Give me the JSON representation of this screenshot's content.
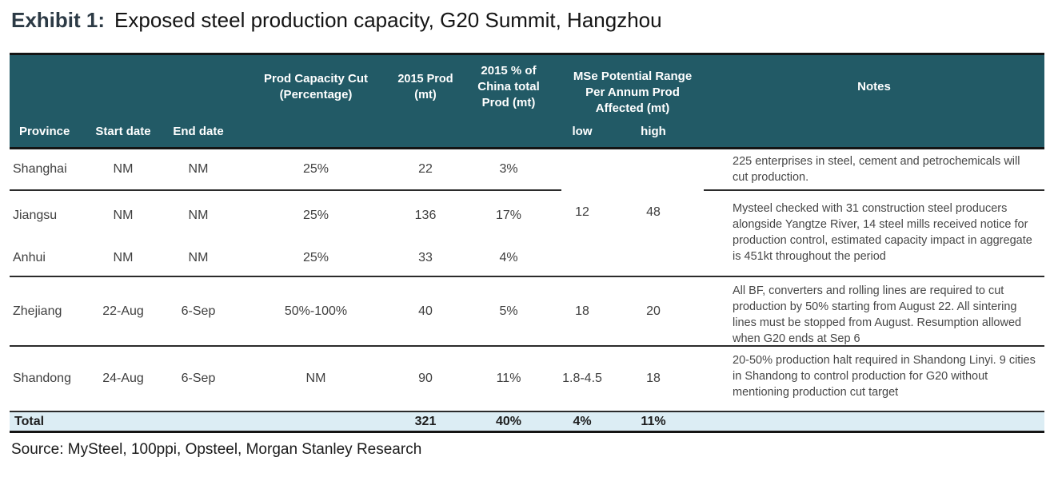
{
  "exhibit": {
    "label": "Exhibit 1:",
    "title": "Exposed steel production capacity, G20 Summit, Hangzhou"
  },
  "source": "Source: MySteel, 100ppi, Opsteel, Morgan Stanley Research",
  "colors": {
    "header_bg": "#225a66",
    "header_text": "#ffffff",
    "total_row_bg": "#dcedf4",
    "exhibit_label": "#2c3a45",
    "body_text": "#3f3f3f"
  },
  "table": {
    "headers": {
      "province": "Province",
      "start_date": "Start date",
      "end_date": "End date",
      "prod_cut": "Prod Capacity Cut (Percentage)",
      "prod_2015": "2015 Prod (mt)",
      "china_pct": "2015 % of China total Prod (mt)",
      "mse_group": "MSe Potential Range Per Annum Prod Affected (mt)",
      "low": "low",
      "high": "high",
      "notes": "Notes"
    },
    "rows": [
      {
        "province": "Shanghai",
        "start_date": "NM",
        "end_date": "NM",
        "prod_cut": "25%",
        "prod_2015": "22",
        "china_pct": "3%",
        "note": "225 enterprises in steel, cement and petrochemicals will cut production."
      },
      {
        "province": "Jiangsu",
        "start_date": "NM",
        "end_date": "NM",
        "prod_cut": "25%",
        "prod_2015": "136",
        "china_pct": "17%"
      },
      {
        "province": "Anhui",
        "start_date": "NM",
        "end_date": "NM",
        "prod_cut": "25%",
        "prod_2015": "33",
        "china_pct": "4%"
      },
      {
        "province": "Zhejiang",
        "start_date": "22-Aug",
        "end_date": "6-Sep",
        "prod_cut": "50%-100%",
        "prod_2015": "40",
        "china_pct": "5%",
        "low": "18",
        "high": "20",
        "note": "All BF, converters and rolling lines are required to cut production by 50% starting from August 22. All sintering lines must be stopped from August. Resumption allowed when G20 ends at Sep 6"
      },
      {
        "province": "Shandong",
        "start_date": "24-Aug",
        "end_date": "6-Sep",
        "prod_cut": "NM",
        "prod_2015": "90",
        "china_pct": "11%",
        "low": "1.8-4.5",
        "high": "18",
        "note": "20-50% production halt required in Shandong Linyi. 9 cities in Shandong to control production for G20 without mentioning production cut target"
      }
    ],
    "merged": {
      "low": "12",
      "high": "48",
      "note": "Mysteel checked with 31 construction steel producers alongside Yangtze River, 14 steel mills received notice for production control, estimated capacity impact in aggregate is 451kt throughout the period"
    },
    "total": {
      "label": "Total",
      "prod_2015": "321",
      "china_pct": "40%",
      "low": "4%",
      "high": "11%"
    }
  },
  "chart_data": {
    "type": "table",
    "title": "Exposed steel production capacity, G20 Summit, Hangzhou",
    "columns": [
      "Province",
      "Start date",
      "End date",
      "Prod Capacity Cut (Percentage)",
      "2015 Prod (mt)",
      "2015 % of China total Prod (mt)",
      "MSe Potential Range Per Annum Prod Affected (mt) low",
      "MSe Potential Range Per Annum Prod Affected (mt) high",
      "Notes"
    ],
    "rows": [
      [
        "Shanghai",
        "NM",
        "NM",
        "25%",
        22,
        "3%",
        "12",
        "48",
        "225 enterprises in steel, cement and petrochemicals will cut production."
      ],
      [
        "Jiangsu",
        "NM",
        "NM",
        "25%",
        136,
        "17%",
        "12",
        "48",
        "Mysteel checked with 31 construction steel producers alongside Yangtze River, 14 steel mills received notice for production control, estimated capacity impact in aggregate is 451kt throughout the period"
      ],
      [
        "Anhui",
        "NM",
        "NM",
        "25%",
        33,
        "4%",
        "12",
        "48",
        ""
      ],
      [
        "Zhejiang",
        "22-Aug",
        "6-Sep",
        "50%-100%",
        40,
        "5%",
        "18",
        "20",
        "All BF, converters and rolling lines are required to cut production by 50% starting from August 22. All sintering lines must be stopped from August. Resumption allowed when G20 ends at Sep 6"
      ],
      [
        "Shandong",
        "24-Aug",
        "6-Sep",
        "NM",
        90,
        "11%",
        "1.8-4.5",
        "18",
        "20-50% production halt required in Shandong Linyi. 9 cities in Shandong to control production for G20 without mentioning production cut target"
      ]
    ],
    "total_row": [
      "Total",
      "",
      "",
      "",
      321,
      "40%",
      "4%",
      "11%",
      ""
    ]
  }
}
